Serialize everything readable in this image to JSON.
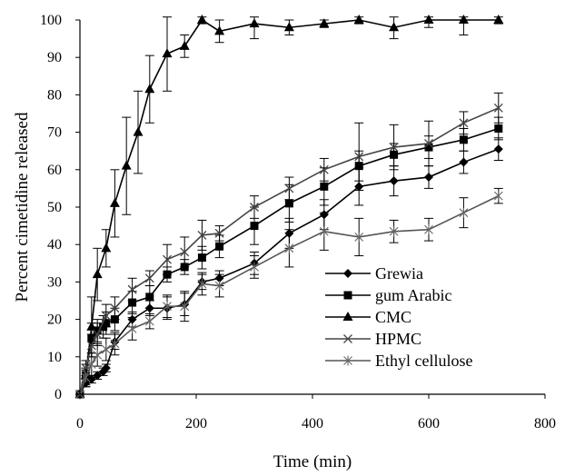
{
  "chart_data": {
    "type": "line",
    "title": "",
    "xlabel": "Time (min)",
    "ylabel": "Percent cimetidine released",
    "xlim": [
      0,
      800
    ],
    "ylim": [
      0,
      100
    ],
    "xticks": [
      0,
      200,
      400,
      600,
      800
    ],
    "yticks": [
      0,
      10,
      20,
      30,
      40,
      50,
      60,
      70,
      80,
      90,
      100
    ],
    "grid": false,
    "legend_position": "bottom-right",
    "series": [
      {
        "name": "Grewia",
        "marker": "diamond",
        "x": [
          0,
          10,
          20,
          30,
          40,
          45,
          60,
          90,
          120,
          150,
          180,
          210,
          240,
          300,
          360,
          420,
          480,
          540,
          600,
          660,
          720
        ],
        "y": [
          0,
          3,
          4,
          5,
          6,
          7,
          14,
          20,
          23,
          23,
          24,
          30,
          31,
          35,
          43,
          48,
          55.5,
          57,
          58,
          62,
          65.5
        ],
        "err": [
          0,
          1,
          1,
          1,
          1,
          1,
          2,
          2,
          2,
          3,
          3,
          2,
          2,
          3,
          4,
          4,
          5,
          4,
          3,
          3,
          3
        ]
      },
      {
        "name": "gum Arabic",
        "marker": "square",
        "x": [
          0,
          10,
          20,
          30,
          40,
          45,
          60,
          90,
          120,
          150,
          180,
          210,
          240,
          300,
          360,
          420,
          480,
          540,
          600,
          660,
          720
        ],
        "y": [
          0,
          5,
          15,
          17,
          18,
          19,
          20,
          24.5,
          26,
          32,
          34,
          36.5,
          39.5,
          45,
          51,
          55.5,
          61,
          64,
          66,
          68,
          71
        ],
        "err": [
          0,
          2,
          4,
          3,
          3,
          3,
          3,
          3,
          3,
          2,
          2,
          3,
          3,
          5,
          5,
          5,
          4,
          3,
          3,
          3,
          3
        ]
      },
      {
        "name": "CMC",
        "marker": "triangle",
        "x": [
          0,
          10,
          20,
          30,
          45,
          60,
          80,
          100,
          120,
          150,
          180,
          210,
          240,
          300,
          360,
          420,
          480,
          540,
          600,
          660,
          720
        ],
        "y": [
          0,
          5,
          18,
          32,
          39,
          51,
          61,
          70,
          81.5,
          91,
          93,
          100,
          97,
          99,
          98,
          99,
          100,
          98,
          100,
          100,
          100
        ],
        "err": [
          0,
          3,
          8,
          7,
          5,
          9,
          13,
          11,
          9,
          10,
          3,
          1,
          3,
          4,
          2,
          1,
          1,
          3,
          2,
          4,
          1
        ]
      },
      {
        "name": "HPMC",
        "marker": "x",
        "x": [
          0,
          10,
          20,
          30,
          45,
          60,
          90,
          120,
          150,
          180,
          210,
          240,
          300,
          360,
          420,
          480,
          540,
          600,
          660,
          720
        ],
        "y": [
          0,
          7,
          13,
          16,
          21,
          23,
          28,
          31,
          36,
          38,
          42.5,
          43,
          50,
          55,
          60,
          63.5,
          66,
          67,
          72.5,
          76.5
        ],
        "err": [
          0,
          2,
          3,
          3,
          3,
          3,
          3,
          2,
          4,
          4,
          4,
          2,
          3,
          3,
          3,
          9,
          6,
          6,
          3,
          4
        ]
      },
      {
        "name": "Ethyl cellulose",
        "marker": "asterisk",
        "x": [
          0,
          10,
          20,
          30,
          45,
          60,
          90,
          120,
          150,
          180,
          210,
          240,
          300,
          360,
          420,
          480,
          540,
          600,
          660,
          720
        ],
        "y": [
          0,
          4.5,
          8,
          10.5,
          12,
          13.5,
          17.5,
          19.5,
          23.5,
          23.5,
          29.5,
          29,
          34,
          39,
          43.5,
          42,
          43.5,
          44,
          48.5,
          53
        ],
        "err": [
          0,
          2,
          3,
          3,
          3,
          3,
          3,
          2,
          3,
          4,
          3,
          3,
          3,
          5,
          5,
          5,
          3,
          3,
          4,
          2
        ]
      }
    ]
  }
}
